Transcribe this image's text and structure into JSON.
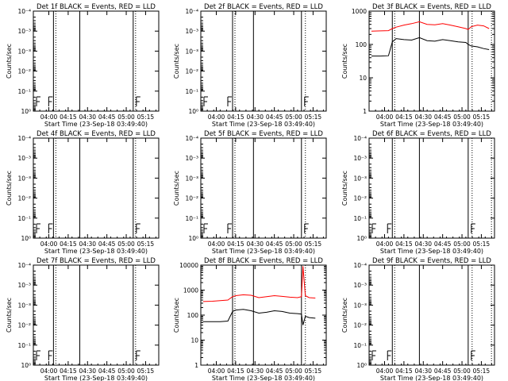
{
  "chart_data": [
    {
      "type": "line",
      "title": "Det 1f BLACK = Events, RED = LLD",
      "xlabel": "Start Time (23-Sep-18 03:49:40)",
      "ylabel": "Counts/sec",
      "x_ticks": [
        "04:00",
        "04:15",
        "04:30",
        "04:45",
        "05:00",
        "05:15"
      ],
      "y_mode": "blank",
      "y_ticks": [
        "10⁻⁴",
        "10⁻³",
        "10⁻³",
        "10⁻²",
        "10⁻¹",
        "10⁰"
      ],
      "y_ticks_value_for": "axis unlabeled scientific",
      "vlines": {
        "solid": [
          4.06,
          4.4,
          5.09
        ],
        "dotted": [
          4.06,
          5.09
        ]
      },
      "series": []
    },
    {
      "type": "line",
      "title": "Det 2f BLACK = Events, RED = LLD",
      "xlabel": "Start Time (23-Sep-18 03:49:40)",
      "ylabel": "Counts/sec",
      "x_ticks": [
        "04:00",
        "04:15",
        "04:30",
        "04:45",
        "05:00",
        "05:15"
      ],
      "y_mode": "blank",
      "y_ticks": [
        "10⁻⁴",
        "10⁻³",
        "10⁻³",
        "10⁻²",
        "10⁻¹",
        "10⁰"
      ],
      "vlines": {
        "solid": [
          4.21,
          4.48,
          5.1
        ],
        "dotted": [
          4.21,
          5.12
        ]
      },
      "series": []
    },
    {
      "type": "line",
      "title": "Det 3f BLACK = Events, RED = LLD",
      "xlabel": "Start Time (23-Sep-18 03:49:40)",
      "ylabel": "Counts/sec",
      "x_ticks": [
        "04:00",
        "04:15",
        "04:30",
        "04:45",
        "05:00",
        "05:15"
      ],
      "y_mode": "log",
      "ylim": [
        1,
        1000
      ],
      "y_ticks": [
        "1",
        "10",
        "100",
        "1000"
      ],
      "vlines": {
        "solid": [
          4.1,
          4.45,
          5.08
        ],
        "dotted": [
          4.1,
          5.1,
          5.35
        ]
      },
      "series": [
        {
          "color": "#ff0000",
          "x": [
            3.83,
            3.95,
            4.05,
            4.1,
            4.15,
            4.25,
            4.35,
            4.45,
            4.55,
            4.65,
            4.75,
            4.85,
            4.95,
            5.05,
            5.08,
            5.12,
            5.2,
            5.28,
            5.35
          ],
          "y": [
            250,
            255,
            260,
            300,
            330,
            380,
            420,
            480,
            400,
            390,
            420,
            380,
            340,
            300,
            280,
            340,
            380,
            360,
            300
          ]
        },
        {
          "color": "#000000",
          "x": [
            3.83,
            3.95,
            4.05,
            4.1,
            4.15,
            4.25,
            4.35,
            4.45,
            4.55,
            4.65,
            4.75,
            4.85,
            4.95,
            5.05,
            5.08,
            5.12,
            5.2,
            5.28,
            5.35
          ],
          "y": [
            45,
            45,
            46,
            120,
            150,
            140,
            135,
            160,
            130,
            125,
            140,
            130,
            120,
            115,
            100,
            90,
            85,
            75,
            70
          ]
        }
      ]
    },
    {
      "type": "line",
      "title": "Det 4f BLACK = Events, RED = LLD",
      "xlabel": "Start Time (23-Sep-18 03:49:40)",
      "ylabel": "Counts/sec",
      "x_ticks": [
        "04:00",
        "04:15",
        "04:30",
        "04:45",
        "05:00",
        "05:15"
      ],
      "y_mode": "blank",
      "y_ticks": [
        "10⁻⁴",
        "10⁻³",
        "10⁻³",
        "10⁻²",
        "10⁻¹",
        "10⁰"
      ],
      "vlines": {
        "solid": [
          4.06,
          4.4,
          5.09
        ],
        "dotted": [
          4.06,
          5.09
        ]
      },
      "series": []
    },
    {
      "type": "line",
      "title": "Det 5f BLACK = Events, RED = LLD",
      "xlabel": "Start Time (23-Sep-18 03:49:40)",
      "ylabel": "Counts/sec",
      "x_ticks": [
        "04:00",
        "04:15",
        "04:30",
        "04:45",
        "05:00",
        "05:15"
      ],
      "y_mode": "blank",
      "y_ticks": [
        "10⁻⁴",
        "10⁻³",
        "10⁻³",
        "10⁻²",
        "10⁻¹",
        "10⁰"
      ],
      "vlines": {
        "solid": [
          4.21,
          4.48,
          5.1
        ],
        "dotted": [
          4.21,
          5.12
        ]
      },
      "series": []
    },
    {
      "type": "line",
      "title": "Det 6f BLACK = Events, RED = LLD",
      "xlabel": "Start Time (23-Sep-18 03:49:40)",
      "ylabel": "Counts/sec",
      "x_ticks": [
        "04:00",
        "04:15",
        "04:30",
        "04:45",
        "05:00",
        "05:15"
      ],
      "y_mode": "blank",
      "y_ticks": [
        "10⁻⁴",
        "10⁻³",
        "10⁻³",
        "10⁻²",
        "10⁻¹",
        "10⁰"
      ],
      "vlines": {
        "solid": [
          4.1,
          4.45,
          5.08
        ],
        "dotted": [
          4.1,
          5.1,
          5.35
        ]
      },
      "series": []
    },
    {
      "type": "line",
      "title": "Det 7f BLACK = Events, RED = LLD",
      "xlabel": "Start Time (23-Sep-18 03:49:40)",
      "ylabel": "Counts/sec",
      "x_ticks": [
        "04:00",
        "04:15",
        "04:30",
        "04:45",
        "05:00",
        "05:15"
      ],
      "y_mode": "blank",
      "y_ticks": [
        "10⁻⁴",
        "10⁻³",
        "10⁻³",
        "10⁻²",
        "10⁻¹",
        "10⁰"
      ],
      "vlines": {
        "solid": [
          4.06,
          4.4,
          5.09
        ],
        "dotted": [
          4.06,
          5.09
        ]
      },
      "series": []
    },
    {
      "type": "line",
      "title": "Det 8f BLACK = Events, RED = LLD",
      "xlabel": "Start Time (23-Sep-18 03:49:40)",
      "ylabel": "Counts/sec",
      "x_ticks": [
        "04:00",
        "04:15",
        "04:30",
        "04:45",
        "05:00",
        "05:15"
      ],
      "y_mode": "log",
      "ylim": [
        1,
        10000
      ],
      "y_ticks": [
        "1",
        "10",
        "100",
        "1000",
        "10000"
      ],
      "vlines": {
        "solid": [
          4.21,
          4.48,
          5.1
        ],
        "dotted": [
          4.21,
          5.12
        ]
      },
      "series": [
        {
          "color": "#ff0000",
          "x": [
            3.83,
            3.95,
            4.05,
            4.15,
            4.21,
            4.25,
            4.35,
            4.45,
            4.55,
            4.65,
            4.75,
            4.85,
            4.95,
            5.05,
            5.1,
            5.12,
            5.15,
            5.2,
            5.28
          ],
          "y": [
            350,
            360,
            380,
            400,
            550,
            600,
            650,
            620,
            500,
            550,
            600,
            560,
            520,
            500,
            550,
            9000,
            600,
            500,
            480
          ]
        },
        {
          "color": "#000000",
          "x": [
            3.83,
            3.95,
            4.05,
            4.15,
            4.21,
            4.25,
            4.35,
            4.45,
            4.55,
            4.65,
            4.75,
            4.85,
            4.95,
            5.05,
            5.1,
            5.12,
            5.15,
            5.2,
            5.28
          ],
          "y": [
            55,
            55,
            55,
            58,
            140,
            160,
            170,
            150,
            120,
            130,
            150,
            140,
            120,
            115,
            110,
            40,
            90,
            80,
            75
          ]
        }
      ]
    },
    {
      "type": "line",
      "title": "Det 9f BLACK = Events, RED = LLD",
      "xlabel": "Start Time (23-Sep-18 03:49:40)",
      "ylabel": "Counts/sec",
      "x_ticks": [
        "04:00",
        "04:15",
        "04:30",
        "04:45",
        "05:00",
        "05:15"
      ],
      "y_mode": "blank",
      "y_ticks": [
        "10⁻⁴",
        "10⁻³",
        "10⁻³",
        "10⁻²",
        "10⁻¹",
        "10⁰"
      ],
      "vlines": {
        "solid": [
          4.1,
          4.45,
          5.08
        ],
        "dotted": [
          4.1,
          5.1,
          5.35
        ]
      },
      "series": []
    }
  ]
}
